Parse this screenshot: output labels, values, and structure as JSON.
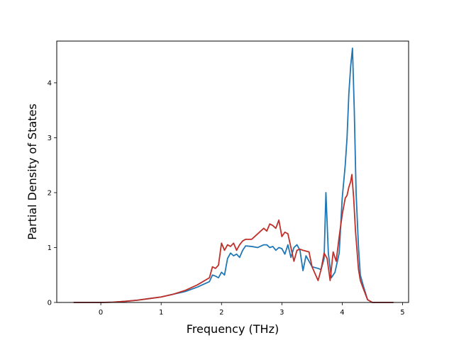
{
  "chart_data": {
    "type": "line",
    "xlabel": "Frequency (THz)",
    "ylabel": "Partial Density of States",
    "xlim": [
      -0.73,
      5.1
    ],
    "ylim": [
      0,
      4.76
    ],
    "xticks": [
      "0",
      "1",
      "2",
      "3",
      "4",
      "5"
    ],
    "yticks": [
      "0",
      "1",
      "2",
      "3",
      "4"
    ],
    "grid": false,
    "legend": "none",
    "series": [
      {
        "color": "#1f77b4",
        "points": [
          [
            -0.45,
            0
          ],
          [
            0,
            0
          ],
          [
            0.2,
            0.005
          ],
          [
            0.4,
            0.02
          ],
          [
            0.6,
            0.04
          ],
          [
            0.8,
            0.07
          ],
          [
            1.0,
            0.1
          ],
          [
            1.2,
            0.15
          ],
          [
            1.4,
            0.2
          ],
          [
            1.6,
            0.28
          ],
          [
            1.8,
            0.38
          ],
          [
            1.85,
            0.5
          ],
          [
            1.9,
            0.48
          ],
          [
            1.95,
            0.45
          ],
          [
            2.0,
            0.55
          ],
          [
            2.05,
            0.5
          ],
          [
            2.1,
            0.8
          ],
          [
            2.15,
            0.9
          ],
          [
            2.2,
            0.85
          ],
          [
            2.25,
            0.88
          ],
          [
            2.3,
            0.82
          ],
          [
            2.35,
            0.95
          ],
          [
            2.4,
            1.03
          ],
          [
            2.5,
            1.02
          ],
          [
            2.6,
            1.0
          ],
          [
            2.7,
            1.05
          ],
          [
            2.75,
            1.05
          ],
          [
            2.8,
            1.0
          ],
          [
            2.85,
            1.02
          ],
          [
            2.9,
            0.95
          ],
          [
            2.95,
            1.0
          ],
          [
            3.0,
            0.98
          ],
          [
            3.05,
            0.88
          ],
          [
            3.1,
            1.05
          ],
          [
            3.15,
            0.82
          ],
          [
            3.2,
            1.0
          ],
          [
            3.25,
            1.05
          ],
          [
            3.3,
            0.95
          ],
          [
            3.35,
            0.58
          ],
          [
            3.4,
            0.85
          ],
          [
            3.45,
            0.75
          ],
          [
            3.5,
            0.65
          ],
          [
            3.6,
            0.62
          ],
          [
            3.65,
            0.6
          ],
          [
            3.7,
            0.8
          ],
          [
            3.73,
            2.0
          ],
          [
            3.77,
            0.9
          ],
          [
            3.82,
            0.45
          ],
          [
            3.88,
            0.55
          ],
          [
            3.95,
            0.9
          ],
          [
            4.0,
            1.9
          ],
          [
            4.05,
            2.5
          ],
          [
            4.08,
            3.0
          ],
          [
            4.11,
            3.8
          ],
          [
            4.14,
            4.3
          ],
          [
            4.17,
            4.63
          ],
          [
            4.2,
            3.5
          ],
          [
            4.23,
            2.0
          ],
          [
            4.27,
            1.0
          ],
          [
            4.3,
            0.5
          ],
          [
            4.35,
            0.3
          ],
          [
            4.42,
            0.05
          ],
          [
            4.5,
            0
          ],
          [
            4.85,
            0
          ]
        ]
      },
      {
        "color": "#c0302a",
        "points": [
          [
            -0.45,
            0
          ],
          [
            0,
            0
          ],
          [
            0.2,
            0.005
          ],
          [
            0.4,
            0.02
          ],
          [
            0.6,
            0.04
          ],
          [
            0.8,
            0.07
          ],
          [
            1.0,
            0.1
          ],
          [
            1.2,
            0.15
          ],
          [
            1.4,
            0.22
          ],
          [
            1.6,
            0.32
          ],
          [
            1.8,
            0.45
          ],
          [
            1.85,
            0.65
          ],
          [
            1.9,
            0.62
          ],
          [
            1.95,
            0.68
          ],
          [
            2.0,
            1.08
          ],
          [
            2.05,
            0.95
          ],
          [
            2.1,
            1.05
          ],
          [
            2.15,
            1.02
          ],
          [
            2.2,
            1.08
          ],
          [
            2.25,
            0.95
          ],
          [
            2.3,
            1.05
          ],
          [
            2.35,
            1.12
          ],
          [
            2.4,
            1.15
          ],
          [
            2.5,
            1.15
          ],
          [
            2.6,
            1.25
          ],
          [
            2.7,
            1.35
          ],
          [
            2.75,
            1.3
          ],
          [
            2.8,
            1.43
          ],
          [
            2.85,
            1.4
          ],
          [
            2.9,
            1.35
          ],
          [
            2.95,
            1.5
          ],
          [
            3.0,
            1.2
          ],
          [
            3.05,
            1.28
          ],
          [
            3.1,
            1.25
          ],
          [
            3.15,
            1.0
          ],
          [
            3.2,
            0.75
          ],
          [
            3.25,
            0.95
          ],
          [
            3.3,
            0.97
          ],
          [
            3.35,
            0.95
          ],
          [
            3.45,
            0.92
          ],
          [
            3.5,
            0.65
          ],
          [
            3.6,
            0.4
          ],
          [
            3.65,
            0.6
          ],
          [
            3.7,
            0.9
          ],
          [
            3.75,
            0.8
          ],
          [
            3.8,
            0.4
          ],
          [
            3.85,
            0.92
          ],
          [
            3.9,
            0.75
          ],
          [
            3.95,
            1.2
          ],
          [
            4.0,
            1.6
          ],
          [
            4.05,
            1.9
          ],
          [
            4.08,
            1.95
          ],
          [
            4.11,
            2.1
          ],
          [
            4.14,
            2.2
          ],
          [
            4.16,
            2.33
          ],
          [
            4.19,
            1.9
          ],
          [
            4.22,
            1.3
          ],
          [
            4.27,
            0.6
          ],
          [
            4.3,
            0.4
          ],
          [
            4.35,
            0.25
          ],
          [
            4.42,
            0.05
          ],
          [
            4.5,
            0
          ],
          [
            4.85,
            0
          ]
        ]
      }
    ]
  }
}
